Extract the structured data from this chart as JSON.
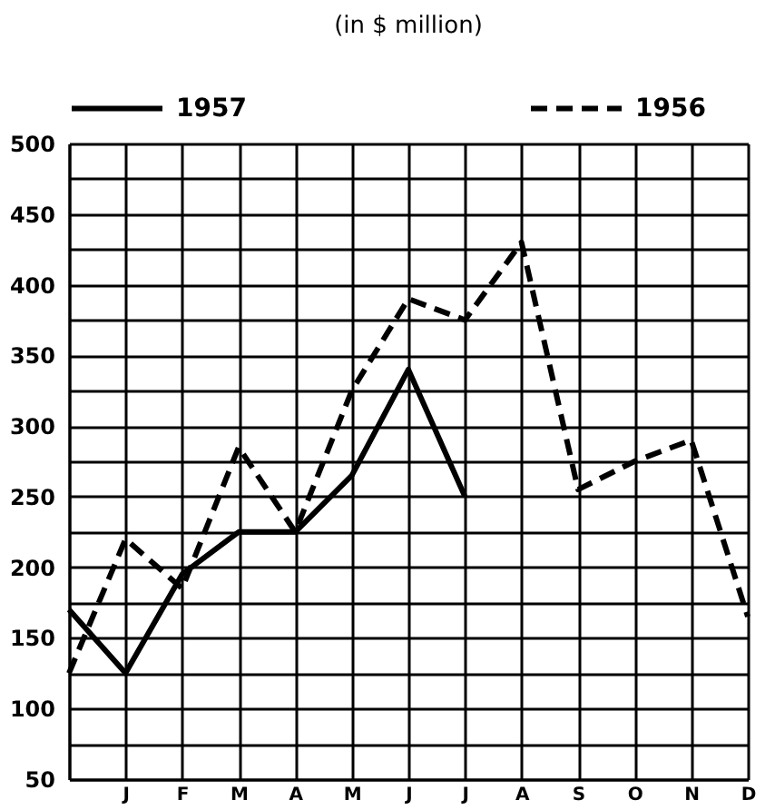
{
  "chart_data": {
    "type": "line",
    "title": "(in $ million)",
    "categories": [
      null,
      "J",
      "F",
      "M",
      "A",
      "M",
      "J",
      "J",
      "A",
      "S",
      "O",
      "N",
      "D"
    ],
    "series": [
      {
        "name": "1957",
        "color": "#000000",
        "line_style": "solid",
        "values": [
          170,
          125,
          195,
          225,
          225,
          265,
          340,
          250,
          null,
          null,
          null,
          null,
          null
        ]
      },
      {
        "name": "1956",
        "color": "#000000",
        "line_style": "dashed",
        "values": [
          125,
          220,
          185,
          285,
          225,
          325,
          390,
          375,
          430,
          255,
          275,
          290,
          165
        ]
      }
    ],
    "ylim": [
      50,
      500
    ],
    "yticks": [
      50,
      {
        "value": 75,
        "label": null
      },
      100,
      {
        "value": 125,
        "label": null
      },
      150,
      {
        "value": 175,
        "label": null
      },
      200,
      {
        "value": 225,
        "label": null
      },
      250,
      {
        "value": 275,
        "label": null
      },
      300,
      {
        "value": 325,
        "label": null
      },
      350,
      {
        "value": 375,
        "label": null
      },
      400,
      {
        "value": 425,
        "label": null
      },
      450,
      {
        "value": 475,
        "label": null
      },
      500
    ],
    "grid": true,
    "legend": "top"
  }
}
